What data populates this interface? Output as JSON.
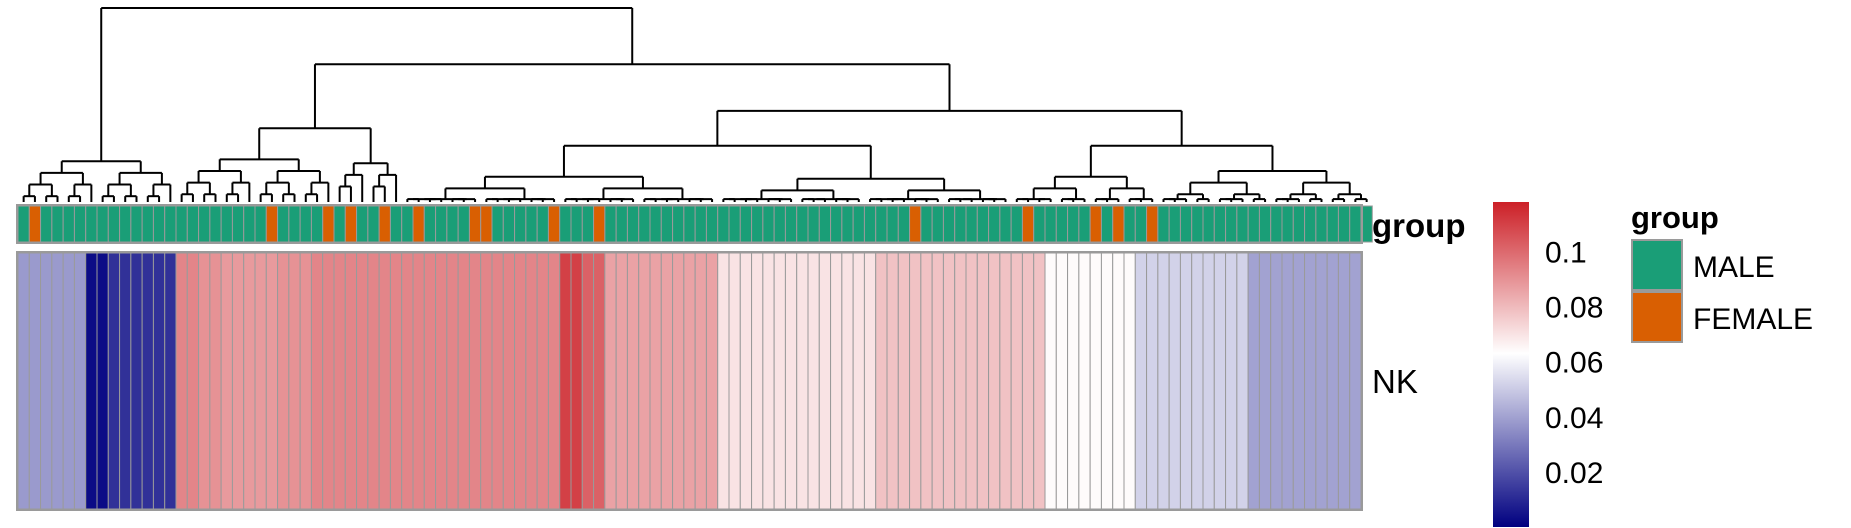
{
  "chart_data": {
    "type": "heatmap",
    "row_labels": [
      "NK"
    ],
    "annotation": {
      "name": "group",
      "values": [
        "MALE",
        "FEMALE",
        "MALE",
        "MALE",
        "MALE",
        "MALE",
        "MALE",
        "MALE",
        "MALE",
        "MALE",
        "MALE",
        "MALE",
        "MALE",
        "MALE",
        "MALE",
        "MALE",
        "MALE",
        "MALE",
        "MALE",
        "MALE",
        "MALE",
        "MALE",
        "FEMALE",
        "MALE",
        "MALE",
        "MALE",
        "MALE",
        "FEMALE",
        "MALE",
        "FEMALE",
        "MALE",
        "MALE",
        "FEMALE",
        "MALE",
        "MALE",
        "FEMALE",
        "MALE",
        "MALE",
        "MALE",
        "MALE",
        "FEMALE",
        "FEMALE",
        "MALE",
        "MALE",
        "MALE",
        "MALE",
        "MALE",
        "FEMALE",
        "MALE",
        "MALE",
        "MALE",
        "FEMALE",
        "MALE",
        "MALE",
        "MALE",
        "MALE",
        "MALE",
        "MALE",
        "MALE",
        "MALE",
        "MALE",
        "MALE",
        "MALE",
        "MALE",
        "MALE",
        "MALE",
        "MALE",
        "MALE",
        "MALE",
        "MALE",
        "MALE",
        "MALE",
        "MALE",
        "MALE",
        "MALE",
        "MALE",
        "MALE",
        "MALE",
        "MALE",
        "FEMALE",
        "MALE",
        "MALE",
        "MALE",
        "MALE",
        "MALE",
        "MALE",
        "MALE",
        "MALE",
        "MALE",
        "FEMALE",
        "MALE",
        "MALE",
        "MALE",
        "MALE",
        "MALE",
        "FEMALE",
        "MALE",
        "FEMALE",
        "MALE",
        "MALE",
        "FEMALE",
        "MALE",
        "MALE",
        "MALE",
        "MALE",
        "MALE",
        "MALE",
        "MALE",
        "MALE",
        "MALE",
        "MALE",
        "MALE",
        "MALE",
        "MALE",
        "MALE",
        "MALE",
        "MALE",
        "MALE",
        "MALE",
        "MALE"
      ]
    },
    "values": [
      0.038,
      0.038,
      0.038,
      0.038,
      0.038,
      0.038,
      0.003,
      0.003,
      0.012,
      0.012,
      0.012,
      0.012,
      0.012,
      0.012,
      0.093,
      0.093,
      0.09,
      0.09,
      0.088,
      0.088,
      0.088,
      0.088,
      0.088,
      0.09,
      0.09,
      0.09,
      0.093,
      0.093,
      0.093,
      0.093,
      0.093,
      0.093,
      0.093,
      0.093,
      0.093,
      0.093,
      0.093,
      0.093,
      0.093,
      0.093,
      0.093,
      0.093,
      0.093,
      0.093,
      0.093,
      0.093,
      0.093,
      0.093,
      0.11,
      0.11,
      0.102,
      0.102,
      0.086,
      0.086,
      0.086,
      0.086,
      0.086,
      0.086,
      0.086,
      0.086,
      0.086,
      0.086,
      0.07,
      0.07,
      0.07,
      0.07,
      0.07,
      0.07,
      0.07,
      0.07,
      0.07,
      0.07,
      0.07,
      0.07,
      0.07,
      0.07,
      0.078,
      0.078,
      0.078,
      0.078,
      0.078,
      0.078,
      0.078,
      0.078,
      0.078,
      0.078,
      0.078,
      0.078,
      0.078,
      0.078,
      0.078,
      0.064,
      0.064,
      0.064,
      0.064,
      0.064,
      0.064,
      0.064,
      0.064,
      0.052,
      0.052,
      0.052,
      0.052,
      0.052,
      0.052,
      0.052,
      0.052,
      0.052,
      0.052,
      0.04,
      0.04,
      0.04,
      0.04,
      0.04,
      0.04,
      0.04,
      0.04,
      0.04,
      0.04
    ],
    "color_scale": {
      "stops": [
        {
          "value": 0.0,
          "color": "#000080"
        },
        {
          "value": 0.063,
          "color": "#ffffff"
        },
        {
          "value": 0.118,
          "color": "#cc2027"
        }
      ],
      "ticks": [
        "0.02",
        "0.04",
        "0.06",
        "0.08",
        "0.1"
      ],
      "tick_values": [
        0.02,
        0.04,
        0.06,
        0.08,
        0.1
      ],
      "range": [
        0.0,
        0.118
      ]
    },
    "legend": {
      "title": "group",
      "entries": [
        {
          "label": "MALE",
          "color": "#1a9e77"
        },
        {
          "label": "FEMALE",
          "color": "#d95f02"
        }
      ]
    },
    "dendrogram": "column"
  }
}
